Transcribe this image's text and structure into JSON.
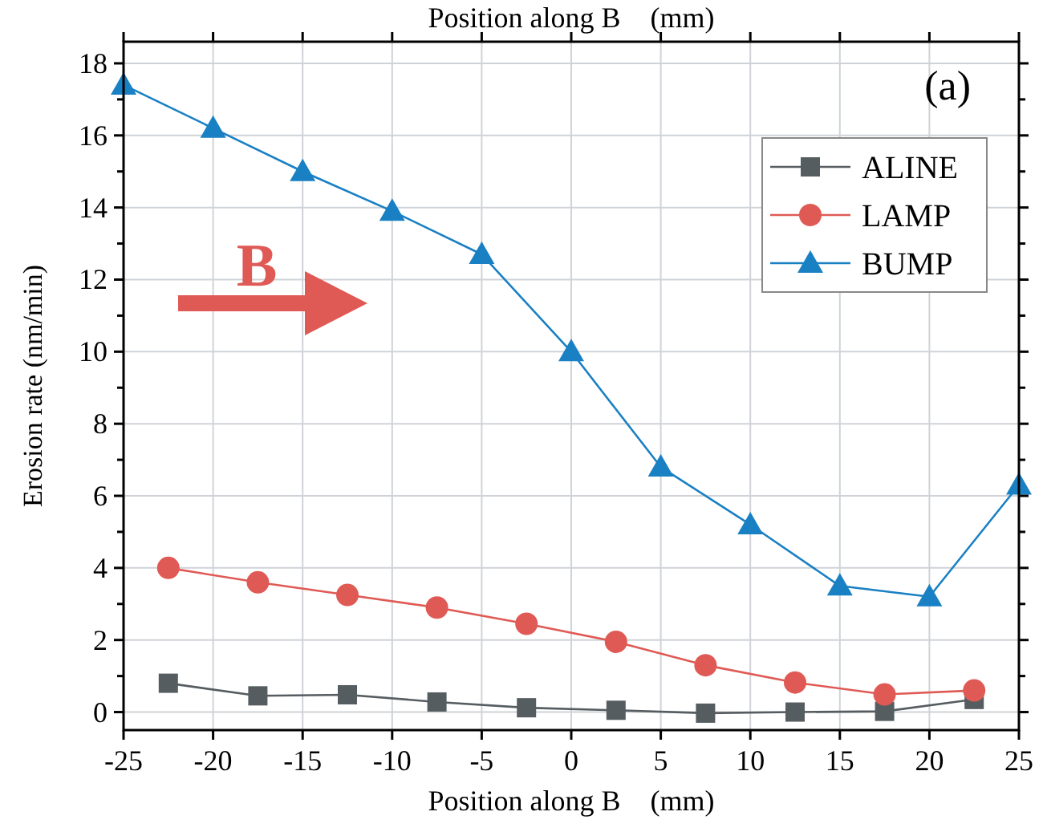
{
  "chart_data": {
    "type": "line",
    "title": "Position along B⃗ (mm)",
    "xlabel": "Position along B⃗ (mm)",
    "ylabel": "Erosion rate (nm/min)",
    "annotations": [
      "(a)",
      "B"
    ],
    "xlim": [
      -25,
      25
    ],
    "xticks": [
      -25,
      -20,
      -15,
      -10,
      -5,
      0,
      5,
      10,
      15,
      20,
      25
    ],
    "ylim": [
      -0.5,
      18.6
    ],
    "yticks": [
      0,
      {
        "value": 1,
        "label": null
      },
      2,
      {
        "value": 3,
        "label": null
      },
      4,
      {
        "value": 5,
        "label": null
      },
      6,
      {
        "value": 7,
        "label": null
      },
      8,
      {
        "value": 9,
        "label": null
      },
      10,
      {
        "value": 11,
        "label": null
      },
      12,
      {
        "value": 13,
        "label": null
      },
      14,
      {
        "value": 15,
        "label": null
      },
      16,
      {
        "value": 17,
        "label": null
      },
      18
    ],
    "grid": true,
    "legend": "top right",
    "series": [
      {
        "name": "ALINE",
        "color": "#555d61",
        "marker": "square",
        "x": [
          -22.5,
          -17.5,
          -12.5,
          -7.5,
          -2.5,
          2.5,
          7.5,
          12.5,
          17.5,
          22.5
        ],
        "values": [
          0.8,
          0.45,
          0.48,
          0.28,
          0.12,
          0.05,
          -0.03,
          0,
          0.02,
          0.35
        ]
      },
      {
        "name": "LAMP",
        "color": "#e05a55",
        "marker": "circle",
        "x": [
          -22.5,
          -17.5,
          -12.5,
          -7.5,
          -2.5,
          2.5,
          7.5,
          12.5,
          17.5,
          22.5
        ],
        "values": [
          4.0,
          3.6,
          3.25,
          2.9,
          2.45,
          1.95,
          1.3,
          0.82,
          0.49,
          0.6
        ]
      },
      {
        "name": "BUMP",
        "color": "#1a80c4",
        "marker": "triangle",
        "x": [
          -25,
          -20,
          -15,
          -10,
          -5,
          0,
          5,
          10,
          15,
          20,
          25
        ],
        "values": [
          17.4,
          16.2,
          15.0,
          13.9,
          12.7,
          10.0,
          6.8,
          5.2,
          3.5,
          3.2,
          6.3
        ]
      }
    ]
  }
}
